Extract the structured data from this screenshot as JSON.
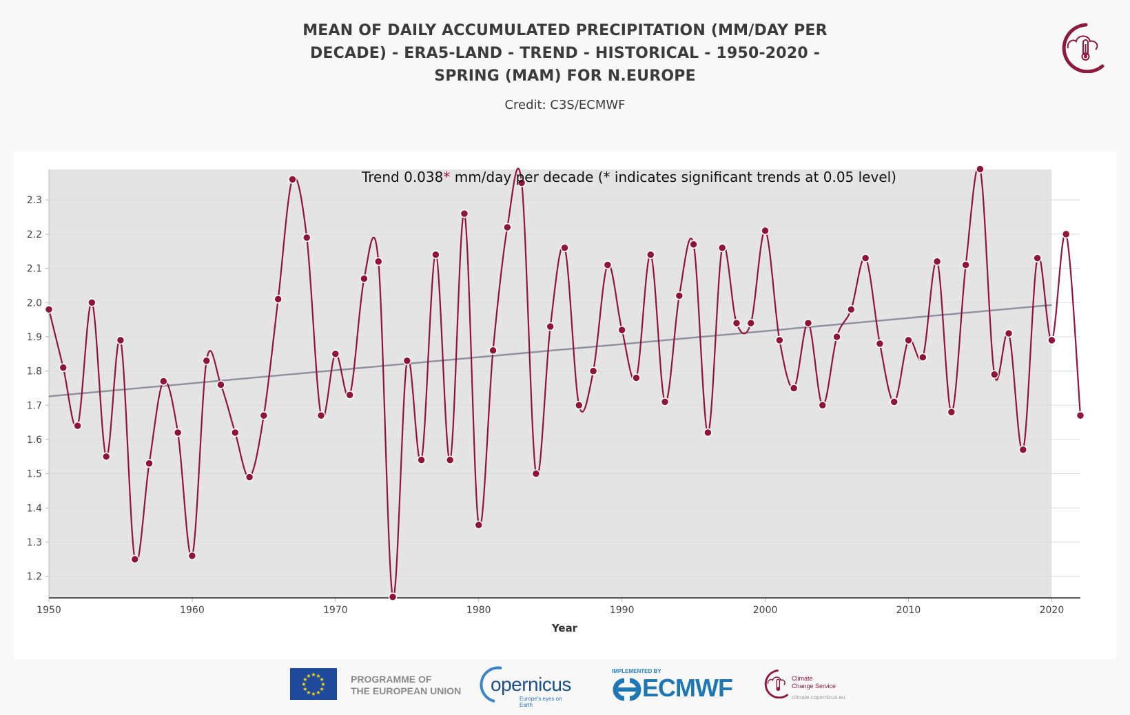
{
  "header": {
    "title_lines": [
      "MEAN OF DAILY ACCUMULATED PRECIPITATION (MM/DAY PER",
      "DECADE) - ERA5-LAND - TREND - HISTORICAL - 1950-2020 -",
      "SPRING (MAM) FOR N.EUROPE"
    ],
    "credit": "Credit: C3S/ECMWF"
  },
  "chart_data": {
    "type": "line",
    "title": "MEAN OF DAILY ACCUMULATED PRECIPITATION (MM/DAY PER DECADE) - ERA5-LAND - TREND - HISTORICAL - 1950-2020 - SPRING (MAM) FOR N.EUROPE",
    "annotation": {
      "prefix": "Trend 0.038",
      "star": "*",
      "suffix": " mm/day per decade (* indicates significant trends at 0.05 level)"
    },
    "xlabel": "Year",
    "ylabel": "",
    "xlim": [
      1950,
      2022
    ],
    "ylim": [
      1.137,
      2.389
    ],
    "shaded_period": [
      1950,
      2020
    ],
    "x_ticks": [
      1950,
      1960,
      1970,
      1980,
      1990,
      2000,
      2010,
      2020
    ],
    "y_ticks": [
      1.2,
      1.3,
      1.4,
      1.5,
      1.6,
      1.7,
      1.8,
      1.9,
      2.0,
      2.1,
      2.2,
      2.3
    ],
    "y_tick_labels": [
      "1.2",
      "1.3",
      "1.4",
      "1.5",
      "1.6",
      "1.7",
      "1.8",
      "1.9",
      "2.0",
      "2.1",
      "2.2",
      "2.3"
    ],
    "grid": true,
    "colors": {
      "series": "#8f1538",
      "trend": "#8e929c",
      "shaded": "#e4e4e4"
    },
    "series": [
      {
        "name": "Precipitation",
        "x": [
          1950,
          1951,
          1952,
          1953,
          1954,
          1955,
          1956,
          1957,
          1958,
          1959,
          1960,
          1961,
          1962,
          1963,
          1964,
          1965,
          1966,
          1967,
          1968,
          1969,
          1970,
          1971,
          1972,
          1973,
          1974,
          1975,
          1976,
          1977,
          1978,
          1979,
          1980,
          1981,
          1982,
          1983,
          1984,
          1985,
          1986,
          1987,
          1988,
          1989,
          1990,
          1991,
          1992,
          1993,
          1994,
          1995,
          1996,
          1997,
          1998,
          1999,
          2000,
          2001,
          2002,
          2003,
          2004,
          2005,
          2006,
          2007,
          2008,
          2009,
          2010,
          2011,
          2012,
          2013,
          2014,
          2015,
          2016,
          2017,
          2018,
          2019,
          2020,
          2021,
          2022
        ],
        "values": [
          1.98,
          1.81,
          1.64,
          2.0,
          1.55,
          1.89,
          1.25,
          1.53,
          1.77,
          1.62,
          1.26,
          1.83,
          1.76,
          1.62,
          1.49,
          1.67,
          2.01,
          2.36,
          2.19,
          1.67,
          1.85,
          1.73,
          2.07,
          2.12,
          1.14,
          1.83,
          1.54,
          2.14,
          1.54,
          2.26,
          1.35,
          1.86,
          2.22,
          2.35,
          1.5,
          1.93,
          2.16,
          1.7,
          1.8,
          2.11,
          1.92,
          1.78,
          2.14,
          1.71,
          2.02,
          2.17,
          1.62,
          2.16,
          1.94,
          1.94,
          2.21,
          1.89,
          1.75,
          1.94,
          1.7,
          1.9,
          1.98,
          2.13,
          1.88,
          1.71,
          1.89,
          1.84,
          2.12,
          1.68,
          2.11,
          2.39,
          1.79,
          1.91,
          1.57,
          2.13,
          1.89,
          2.2,
          1.67
        ]
      },
      {
        "name": "Trend",
        "x": [
          1950,
          2020
        ],
        "values": [
          1.726,
          1.993
        ]
      }
    ]
  },
  "footer": {
    "eu_text_lines": [
      "PROGRAMME OF",
      "THE EUROPEAN UNION"
    ],
    "copernicus_word": "opernicus",
    "copernicus_sub": "Europe's eyes on Earth",
    "implemented_by": "IMPLEMENTED BY",
    "ecmwf": "ECMWF",
    "c3s_lines": [
      "Climate",
      "Change Service"
    ],
    "c3s_url": "climate.copernicus.eu"
  }
}
